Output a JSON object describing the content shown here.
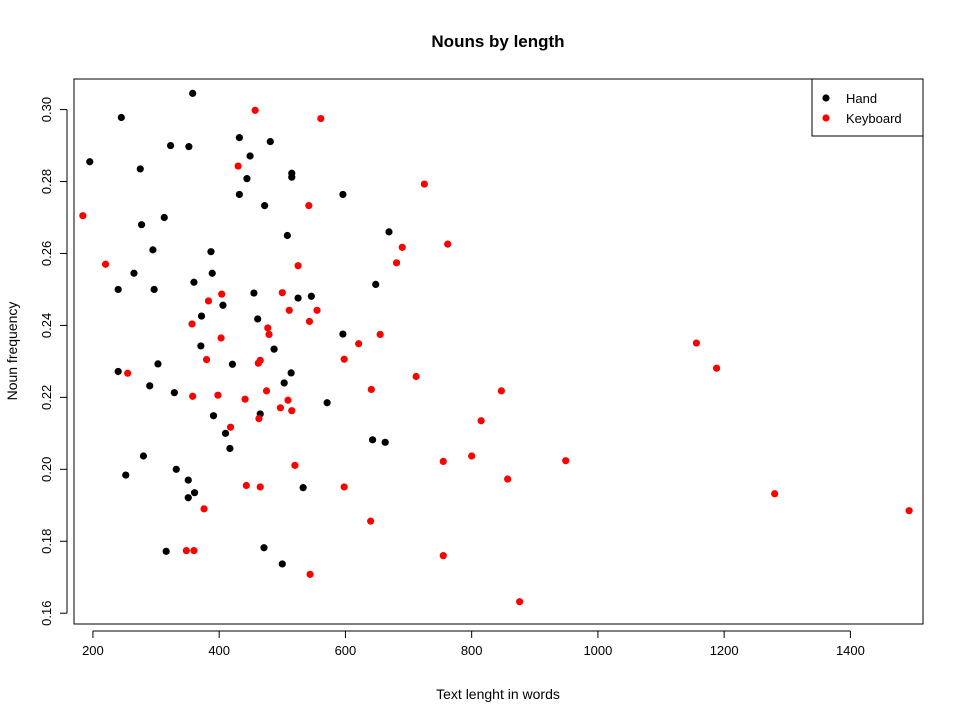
{
  "chart_data": {
    "type": "scatter",
    "title": "Nouns by length",
    "xlabel": "Text lenght in words",
    "ylabel": "Noun frequency",
    "xlim": [
      170,
      1515
    ],
    "ylim": [
      0.157,
      0.3085
    ],
    "x_ticks": [
      200,
      400,
      600,
      800,
      1000,
      1200,
      1400
    ],
    "y_ticks": [
      0.16,
      0.18,
      0.2,
      0.22,
      0.24,
      0.26,
      0.28,
      0.3
    ],
    "y_tick_labels": [
      "0.16",
      "0.18",
      "0.20",
      "0.22",
      "0.24",
      "0.26",
      "0.28",
      "0.30"
    ],
    "grid": false,
    "legend_position": "top-right",
    "series": [
      {
        "name": "Hand",
        "color": "#000000",
        "points": [
          [
            195,
            0.2855
          ],
          [
            245,
            0.2978
          ],
          [
            275,
            0.2835
          ],
          [
            277,
            0.268
          ],
          [
            240,
            0.25
          ],
          [
            265,
            0.2545
          ],
          [
            295,
            0.261
          ],
          [
            297,
            0.25
          ],
          [
            313,
            0.27
          ],
          [
            323,
            0.29
          ],
          [
            352,
            0.2897
          ],
          [
            358,
            0.3045
          ],
          [
            432,
            0.2922
          ],
          [
            449,
            0.2871
          ],
          [
            481,
            0.2911
          ],
          [
            444,
            0.2808
          ],
          [
            432,
            0.2764
          ],
          [
            472,
            0.2733
          ],
          [
            515,
            0.2823
          ],
          [
            515,
            0.2812
          ],
          [
            596,
            0.2764
          ],
          [
            508,
            0.265
          ],
          [
            669,
            0.266
          ],
          [
            648,
            0.2514
          ],
          [
            387,
            0.2605
          ],
          [
            389,
            0.2545
          ],
          [
            360,
            0.252
          ],
          [
            372,
            0.2426
          ],
          [
            406,
            0.2456
          ],
          [
            455,
            0.249
          ],
          [
            461,
            0.2418
          ],
          [
            525,
            0.2476
          ],
          [
            546,
            0.2481
          ],
          [
            596,
            0.2376
          ],
          [
            371,
            0.2343
          ],
          [
            421,
            0.2292
          ],
          [
            487,
            0.2334
          ],
          [
            240,
            0.2272
          ],
          [
            303,
            0.2293
          ],
          [
            290,
            0.2232
          ],
          [
            329,
            0.2213
          ],
          [
            514,
            0.2268
          ],
          [
            503,
            0.224
          ],
          [
            571,
            0.2185
          ],
          [
            465,
            0.2154
          ],
          [
            391,
            0.2149
          ],
          [
            410,
            0.21
          ],
          [
            417,
            0.2058
          ],
          [
            643,
            0.2082
          ],
          [
            663,
            0.2075
          ],
          [
            280,
            0.2037
          ],
          [
            252,
            0.1984
          ],
          [
            332,
            0.2
          ],
          [
            351,
            0.197
          ],
          [
            351,
            0.1921
          ],
          [
            361,
            0.1935
          ],
          [
            533,
            0.1949
          ],
          [
            316,
            0.1772
          ],
          [
            471,
            0.1782
          ],
          [
            500,
            0.1737
          ]
        ]
      },
      {
        "name": "Keyboard",
        "color": "#ff0000",
        "points": [
          [
            184,
            0.2705
          ],
          [
            220,
            0.257
          ],
          [
            255,
            0.2267
          ],
          [
            457,
            0.2998
          ],
          [
            561,
            0.2975
          ],
          [
            430,
            0.2843
          ],
          [
            542,
            0.2733
          ],
          [
            725,
            0.2793
          ],
          [
            762,
            0.2626
          ],
          [
            690,
            0.2617
          ],
          [
            681,
            0.2574
          ],
          [
            525,
            0.2566
          ],
          [
            500,
            0.2491
          ],
          [
            404,
            0.2487
          ],
          [
            383,
            0.2468
          ],
          [
            357,
            0.2404
          ],
          [
            511,
            0.2442
          ],
          [
            555,
            0.2442
          ],
          [
            543,
            0.2411
          ],
          [
            477,
            0.2393
          ],
          [
            479,
            0.2375
          ],
          [
            403,
            0.2365
          ],
          [
            655,
            0.2375
          ],
          [
            621,
            0.2349
          ],
          [
            380,
            0.2305
          ],
          [
            465,
            0.2303
          ],
          [
            462,
            0.2295
          ],
          [
            598,
            0.2306
          ],
          [
            712,
            0.2258
          ],
          [
            1156,
            0.2351
          ],
          [
            1188,
            0.2281
          ],
          [
            475,
            0.2218
          ],
          [
            398,
            0.2206
          ],
          [
            358,
            0.2203
          ],
          [
            441,
            0.2195
          ],
          [
            641,
            0.2222
          ],
          [
            847,
            0.2218
          ],
          [
            509,
            0.2192
          ],
          [
            497,
            0.2171
          ],
          [
            515,
            0.2163
          ],
          [
            463,
            0.2141
          ],
          [
            418,
            0.2117
          ],
          [
            815,
            0.2135
          ],
          [
            520,
            0.2011
          ],
          [
            755,
            0.2022
          ],
          [
            800,
            0.2037
          ],
          [
            949,
            0.2024
          ],
          [
            857,
            0.1973
          ],
          [
            443,
            0.1955
          ],
          [
            465,
            0.1951
          ],
          [
            598,
            0.1951
          ],
          [
            1280,
            0.1932
          ],
          [
            376,
            0.189
          ],
          [
            640,
            0.1856
          ],
          [
            1493,
            0.1885
          ],
          [
            348,
            0.1774
          ],
          [
            360,
            0.1774
          ],
          [
            755,
            0.176
          ],
          [
            544,
            0.1708
          ],
          [
            876,
            0.1632
          ]
        ]
      }
    ]
  }
}
